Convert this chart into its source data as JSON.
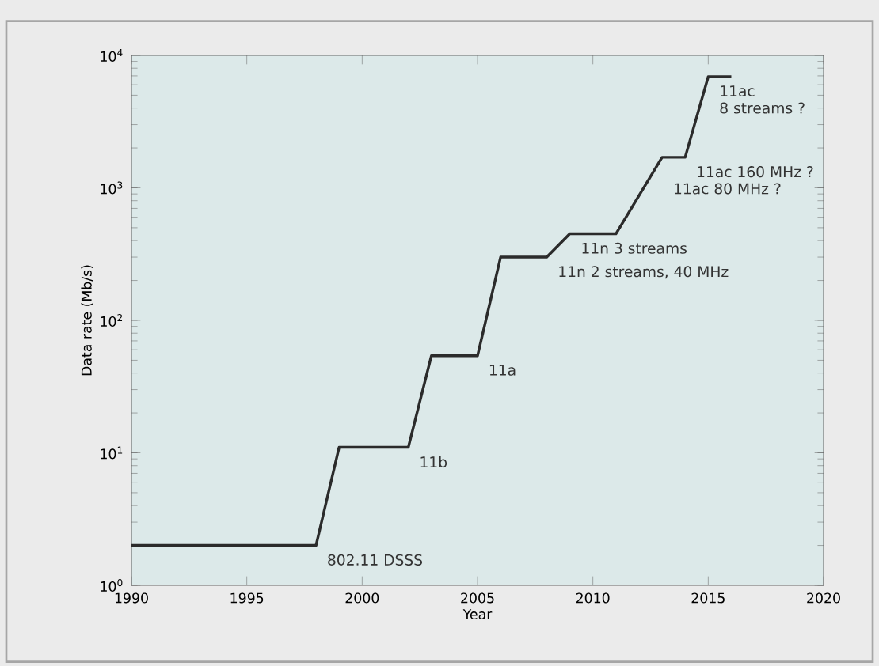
{
  "chart_data": {
    "type": "line",
    "xlabel": "Year",
    "ylabel": "Data rate (Mb/s)",
    "log": "y",
    "marker": "none",
    "xlim": [
      1990,
      2020
    ],
    "xticks": [
      1990,
      1995,
      2000,
      2005,
      2010,
      2015,
      2020
    ],
    "ylim": [
      1,
      10000
    ],
    "yticks": [
      {
        "value": 1,
        "label": "10$^{0}$"
      },
      {
        "value": 10,
        "label": "10$^{1}$"
      },
      {
        "value": 100,
        "label": "10$^{2}$"
      },
      {
        "value": 1000,
        "label": "10$^{3}$"
      },
      {
        "value": 10000,
        "label": "10$^{4}$"
      }
    ],
    "series": [
      {
        "color": "#2b2b2b",
        "x": [
          1990,
          1998,
          1999,
          2002,
          2003,
          2005,
          2006,
          2008,
          2009,
          2011,
          2013,
          2014,
          2015,
          2016
        ],
        "values": [
          2,
          2,
          11,
          11,
          54,
          54,
          300,
          300,
          450,
          450,
          1700,
          1700,
          6900,
          6900
        ]
      }
    ],
    "annotations": [
      {
        "text": "802.11 DSSS",
        "x": 1998,
        "y": 2
      },
      {
        "text": "11b",
        "x": 2002,
        "y": 11
      },
      {
        "text": "11a",
        "x": 2005,
        "y": 54
      },
      {
        "text": "11n 3 streams",
        "x": 2009,
        "y": 450
      },
      {
        "text": "11n 2 streams, 40 MHz",
        "x": 2008,
        "y": 300
      },
      {
        "text": "11ac 160 MHz ?",
        "x": 2014,
        "y": 1700
      },
      {
        "text": "11ac 80 MHz ?",
        "x": 2013,
        "y": 1700
      },
      {
        "text": "11ac",
        "x": 2015,
        "y": 6900
      },
      {
        "text": "8 streams ?",
        "x": 2015,
        "y": 6900
      }
    ]
  }
}
